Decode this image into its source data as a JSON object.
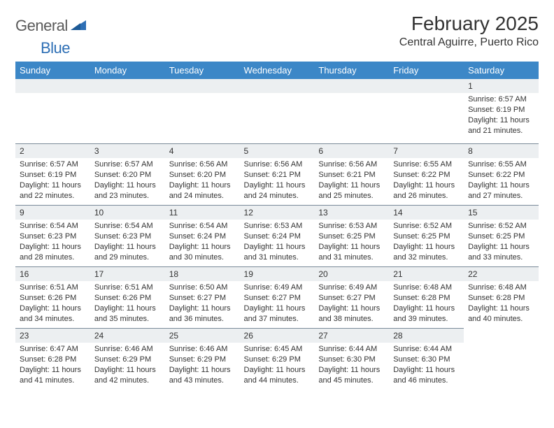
{
  "logo": {
    "word1": "General",
    "word2": "Blue"
  },
  "title": "February 2025",
  "location": "Central Aguirre, Puerto Rico",
  "colors": {
    "header_bg": "#3c87c7",
    "header_text": "#ffffff",
    "daynum_bg": "#eceff1",
    "daynum_border": "#7a8a99",
    "logo_gray": "#5a5a5a",
    "logo_blue": "#2e6fb5",
    "text": "#333333",
    "page_bg": "#ffffff"
  },
  "weekdays": [
    "Sunday",
    "Monday",
    "Tuesday",
    "Wednesday",
    "Thursday",
    "Friday",
    "Saturday"
  ],
  "weeks": [
    [
      null,
      null,
      null,
      null,
      null,
      null,
      {
        "n": "1",
        "sr": "Sunrise: 6:57 AM",
        "ss": "Sunset: 6:19 PM",
        "dl": "Daylight: 11 hours and 21 minutes."
      }
    ],
    [
      {
        "n": "2",
        "sr": "Sunrise: 6:57 AM",
        "ss": "Sunset: 6:19 PM",
        "dl": "Daylight: 11 hours and 22 minutes."
      },
      {
        "n": "3",
        "sr": "Sunrise: 6:57 AM",
        "ss": "Sunset: 6:20 PM",
        "dl": "Daylight: 11 hours and 23 minutes."
      },
      {
        "n": "4",
        "sr": "Sunrise: 6:56 AM",
        "ss": "Sunset: 6:20 PM",
        "dl": "Daylight: 11 hours and 24 minutes."
      },
      {
        "n": "5",
        "sr": "Sunrise: 6:56 AM",
        "ss": "Sunset: 6:21 PM",
        "dl": "Daylight: 11 hours and 24 minutes."
      },
      {
        "n": "6",
        "sr": "Sunrise: 6:56 AM",
        "ss": "Sunset: 6:21 PM",
        "dl": "Daylight: 11 hours and 25 minutes."
      },
      {
        "n": "7",
        "sr": "Sunrise: 6:55 AM",
        "ss": "Sunset: 6:22 PM",
        "dl": "Daylight: 11 hours and 26 minutes."
      },
      {
        "n": "8",
        "sr": "Sunrise: 6:55 AM",
        "ss": "Sunset: 6:22 PM",
        "dl": "Daylight: 11 hours and 27 minutes."
      }
    ],
    [
      {
        "n": "9",
        "sr": "Sunrise: 6:54 AM",
        "ss": "Sunset: 6:23 PM",
        "dl": "Daylight: 11 hours and 28 minutes."
      },
      {
        "n": "10",
        "sr": "Sunrise: 6:54 AM",
        "ss": "Sunset: 6:23 PM",
        "dl": "Daylight: 11 hours and 29 minutes."
      },
      {
        "n": "11",
        "sr": "Sunrise: 6:54 AM",
        "ss": "Sunset: 6:24 PM",
        "dl": "Daylight: 11 hours and 30 minutes."
      },
      {
        "n": "12",
        "sr": "Sunrise: 6:53 AM",
        "ss": "Sunset: 6:24 PM",
        "dl": "Daylight: 11 hours and 31 minutes."
      },
      {
        "n": "13",
        "sr": "Sunrise: 6:53 AM",
        "ss": "Sunset: 6:25 PM",
        "dl": "Daylight: 11 hours and 31 minutes."
      },
      {
        "n": "14",
        "sr": "Sunrise: 6:52 AM",
        "ss": "Sunset: 6:25 PM",
        "dl": "Daylight: 11 hours and 32 minutes."
      },
      {
        "n": "15",
        "sr": "Sunrise: 6:52 AM",
        "ss": "Sunset: 6:25 PM",
        "dl": "Daylight: 11 hours and 33 minutes."
      }
    ],
    [
      {
        "n": "16",
        "sr": "Sunrise: 6:51 AM",
        "ss": "Sunset: 6:26 PM",
        "dl": "Daylight: 11 hours and 34 minutes."
      },
      {
        "n": "17",
        "sr": "Sunrise: 6:51 AM",
        "ss": "Sunset: 6:26 PM",
        "dl": "Daylight: 11 hours and 35 minutes."
      },
      {
        "n": "18",
        "sr": "Sunrise: 6:50 AM",
        "ss": "Sunset: 6:27 PM",
        "dl": "Daylight: 11 hours and 36 minutes."
      },
      {
        "n": "19",
        "sr": "Sunrise: 6:49 AM",
        "ss": "Sunset: 6:27 PM",
        "dl": "Daylight: 11 hours and 37 minutes."
      },
      {
        "n": "20",
        "sr": "Sunrise: 6:49 AM",
        "ss": "Sunset: 6:27 PM",
        "dl": "Daylight: 11 hours and 38 minutes."
      },
      {
        "n": "21",
        "sr": "Sunrise: 6:48 AM",
        "ss": "Sunset: 6:28 PM",
        "dl": "Daylight: 11 hours and 39 minutes."
      },
      {
        "n": "22",
        "sr": "Sunrise: 6:48 AM",
        "ss": "Sunset: 6:28 PM",
        "dl": "Daylight: 11 hours and 40 minutes."
      }
    ],
    [
      {
        "n": "23",
        "sr": "Sunrise: 6:47 AM",
        "ss": "Sunset: 6:28 PM",
        "dl": "Daylight: 11 hours and 41 minutes."
      },
      {
        "n": "24",
        "sr": "Sunrise: 6:46 AM",
        "ss": "Sunset: 6:29 PM",
        "dl": "Daylight: 11 hours and 42 minutes."
      },
      {
        "n": "25",
        "sr": "Sunrise: 6:46 AM",
        "ss": "Sunset: 6:29 PM",
        "dl": "Daylight: 11 hours and 43 minutes."
      },
      {
        "n": "26",
        "sr": "Sunrise: 6:45 AM",
        "ss": "Sunset: 6:29 PM",
        "dl": "Daylight: 11 hours and 44 minutes."
      },
      {
        "n": "27",
        "sr": "Sunrise: 6:44 AM",
        "ss": "Sunset: 6:30 PM",
        "dl": "Daylight: 11 hours and 45 minutes."
      },
      {
        "n": "28",
        "sr": "Sunrise: 6:44 AM",
        "ss": "Sunset: 6:30 PM",
        "dl": "Daylight: 11 hours and 46 minutes."
      },
      null
    ]
  ]
}
